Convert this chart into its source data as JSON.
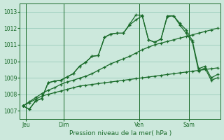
{
  "bg_color": "#cce8dc",
  "plot_bg_color": "#cce8dc",
  "grid_color": "#99ccbb",
  "line_color": "#1a6b2a",
  "title": "Pression niveau de la mer( hPa )",
  "ylabel_ticks": [
    1007,
    1008,
    1009,
    1010,
    1011,
    1012,
    1013
  ],
  "ylim": [
    1006.5,
    1013.5
  ],
  "day_labels": [
    "Jeu",
    "Dim",
    "Ven",
    "Sam"
  ],
  "day_positions": [
    0.5,
    6.5,
    18.5,
    26.5
  ],
  "vline_positions": [
    0.5,
    6.5,
    18.5,
    26.5
  ],
  "n_points": 32,
  "xlim": [
    -0.5,
    31.5
  ],
  "series1_x": [
    0,
    1,
    2,
    3,
    4,
    5,
    6,
    7,
    8,
    9,
    10,
    11,
    12,
    13,
    14,
    15,
    16,
    17,
    18,
    19,
    20,
    21,
    22,
    23,
    24,
    25,
    26,
    27,
    28,
    29,
    30,
    31
  ],
  "series1_y": [
    1007.3,
    1007.1,
    1007.6,
    1007.75,
    1008.7,
    1008.8,
    1008.85,
    1009.05,
    1009.25,
    1009.7,
    1009.95,
    1010.3,
    1010.35,
    1011.45,
    1011.65,
    1011.7,
    1011.7,
    1012.2,
    1012.5,
    1012.75,
    1011.3,
    1011.15,
    1011.35,
    1012.7,
    1012.75,
    1012.2,
    1011.7,
    1011.15,
    1009.4,
    1009.6,
    1008.85,
    1009.0
  ],
  "series2_x": [
    0,
    1,
    2,
    3,
    4,
    5,
    6,
    7,
    8,
    9,
    10,
    11,
    12,
    13,
    14,
    15,
    16,
    17,
    18,
    19,
    20,
    21,
    22,
    23,
    24,
    25,
    26,
    27,
    28,
    29,
    30,
    31
  ],
  "series2_y": [
    1007.3,
    1007.1,
    1007.6,
    1007.75,
    1008.7,
    1008.8,
    1008.85,
    1009.05,
    1009.25,
    1009.7,
    1009.95,
    1010.3,
    1010.35,
    1011.45,
    1011.65,
    1011.7,
    1011.7,
    1012.25,
    1012.8,
    1012.78,
    1011.3,
    1011.15,
    1011.35,
    1012.75,
    1012.75,
    1012.3,
    1011.9,
    1011.25,
    1009.55,
    1009.7,
    1009.0,
    1009.2
  ],
  "series3_x": [
    0,
    1,
    2,
    3,
    4,
    5,
    6,
    7,
    8,
    9,
    10,
    11,
    12,
    13,
    14,
    15,
    16,
    17,
    18,
    19,
    20,
    21,
    22,
    23,
    24,
    25,
    26,
    27,
    28,
    29,
    30,
    31
  ],
  "series3_y": [
    1007.3,
    1007.55,
    1007.8,
    1008.05,
    1008.25,
    1008.4,
    1008.6,
    1008.75,
    1008.85,
    1008.98,
    1009.1,
    1009.25,
    1009.45,
    1009.65,
    1009.85,
    1010.0,
    1010.15,
    1010.3,
    1010.5,
    1010.7,
    1010.85,
    1011.0,
    1011.1,
    1011.2,
    1011.3,
    1011.4,
    1011.5,
    1011.6,
    1011.7,
    1011.8,
    1011.9,
    1012.0
  ],
  "series4_x": [
    0,
    1,
    2,
    3,
    4,
    5,
    6,
    7,
    8,
    9,
    10,
    11,
    12,
    13,
    14,
    15,
    16,
    17,
    18,
    19,
    20,
    21,
    22,
    23,
    24,
    25,
    26,
    27,
    28,
    29,
    30,
    31
  ],
  "series4_y": [
    1007.3,
    1007.5,
    1007.7,
    1007.9,
    1008.0,
    1008.1,
    1008.2,
    1008.3,
    1008.4,
    1008.5,
    1008.55,
    1008.6,
    1008.65,
    1008.7,
    1008.75,
    1008.8,
    1008.85,
    1008.9,
    1008.95,
    1009.0,
    1009.05,
    1009.1,
    1009.15,
    1009.2,
    1009.25,
    1009.3,
    1009.35,
    1009.4,
    1009.45,
    1009.5,
    1009.55,
    1009.6
  ]
}
